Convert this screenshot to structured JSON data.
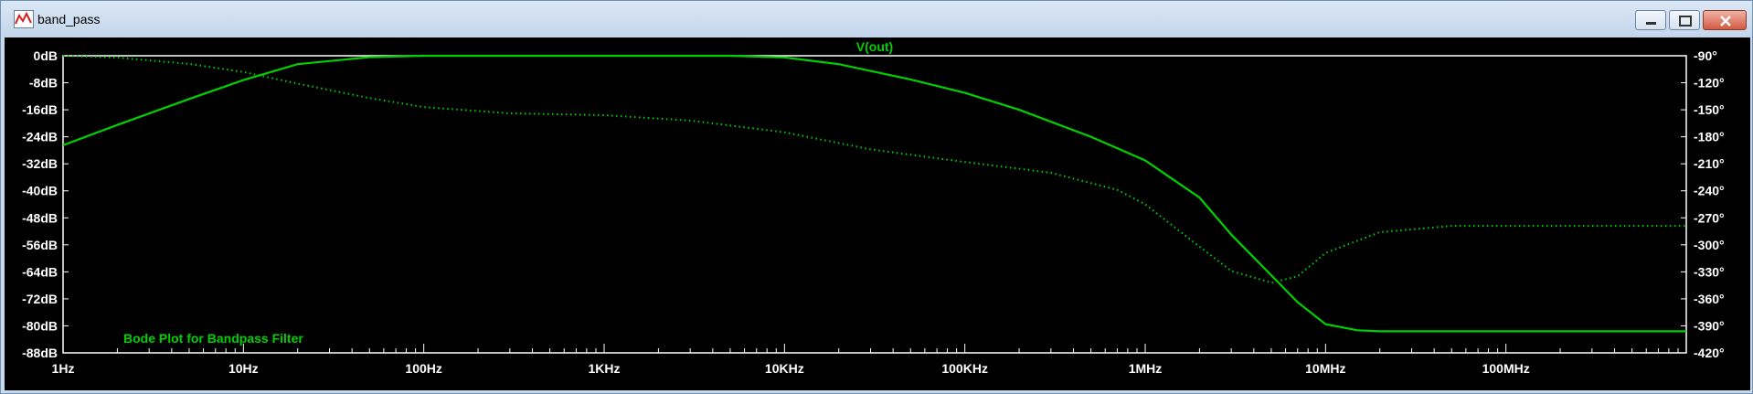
{
  "window": {
    "title": "band_pass"
  },
  "icons": {
    "app": "waveform-icon",
    "minimize": "minimize-icon",
    "maximize": "maximize-icon",
    "close": "close-icon"
  },
  "colors": {
    "trace": "#00d000",
    "axis_text": "#ffffff",
    "background": "#000000",
    "frame": "#ffffff"
  },
  "chart_data": {
    "type": "line",
    "title": "V(out)",
    "annotation": "Bode Plot for Bandpass Filter",
    "x_scale": "log",
    "xlim": [
      1,
      1000000000
    ],
    "x_ticks": [
      {
        "value": 1,
        "label": "1Hz"
      },
      {
        "value": 10,
        "label": "10Hz"
      },
      {
        "value": 100,
        "label": "100Hz"
      },
      {
        "value": 1000,
        "label": "1KHz"
      },
      {
        "value": 10000,
        "label": "10KHz"
      },
      {
        "value": 100000,
        "label": "100KHz"
      },
      {
        "value": 1000000,
        "label": "1MHz"
      },
      {
        "value": 10000000,
        "label": "10MHz"
      },
      {
        "value": 100000000,
        "label": "100MHz"
      }
    ],
    "y_left": {
      "unit": "dB",
      "lim": [
        -88,
        0
      ],
      "ticks": [
        {
          "value": 0,
          "label": "0dB"
        },
        {
          "value": -8,
          "label": "-8dB"
        },
        {
          "value": -16,
          "label": "-16dB"
        },
        {
          "value": -24,
          "label": "-24dB"
        },
        {
          "value": -32,
          "label": "-32dB"
        },
        {
          "value": -40,
          "label": "-40dB"
        },
        {
          "value": -48,
          "label": "-48dB"
        },
        {
          "value": -56,
          "label": "-56dB"
        },
        {
          "value": -64,
          "label": "-64dB"
        },
        {
          "value": -72,
          "label": "-72dB"
        },
        {
          "value": -80,
          "label": "-80dB"
        },
        {
          "value": -88,
          "label": "-88dB"
        }
      ]
    },
    "y_right": {
      "unit": "°",
      "lim": [
        -420,
        -90
      ],
      "ticks": [
        {
          "value": -90,
          "label": "-90°"
        },
        {
          "value": -120,
          "label": "-120°"
        },
        {
          "value": -150,
          "label": "-150°"
        },
        {
          "value": -180,
          "label": "-180°"
        },
        {
          "value": -210,
          "label": "-210°"
        },
        {
          "value": -240,
          "label": "-240°"
        },
        {
          "value": -270,
          "label": "-270°"
        },
        {
          "value": -300,
          "label": "-300°"
        },
        {
          "value": -330,
          "label": "-330°"
        },
        {
          "value": -360,
          "label": "-360°"
        },
        {
          "value": -390,
          "label": "-390°"
        },
        {
          "value": -420,
          "label": "-420°"
        }
      ]
    },
    "grid": false,
    "series": [
      {
        "axis": "left",
        "style": "solid",
        "x": [
          1,
          2,
          5,
          10,
          20,
          50,
          100,
          300,
          1000,
          5000,
          10000,
          20000,
          50000,
          100000,
          200000,
          500000,
          1000000,
          2000000,
          3000000,
          5000000,
          7000000,
          10000000,
          15000000,
          20000000,
          100000000,
          1000000000
        ],
        "y": [
          -26.5,
          -20.5,
          -12.8,
          -7.2,
          -2.5,
          -0.4,
          0,
          0,
          0,
          0,
          -0.5,
          -2.5,
          -7.0,
          -11.0,
          -16.0,
          -24.0,
          -31.0,
          -42.0,
          -53.0,
          -65.0,
          -73.0,
          -79.5,
          -81.3,
          -81.6,
          -81.6,
          -81.6
        ]
      },
      {
        "axis": "right",
        "style": "dotted",
        "x": [
          1,
          2,
          5,
          10,
          20,
          50,
          100,
          300,
          1000,
          3000,
          10000,
          30000,
          100000,
          300000,
          700000,
          1000000,
          2000000,
          3000000,
          5000000,
          7000000,
          10000000,
          20000000,
          50000000,
          100000000,
          1000000000
        ],
        "y": [
          -90,
          -92,
          -99,
          -108,
          -121,
          -137,
          -147,
          -154,
          -156,
          -162,
          -175,
          -194,
          -208,
          -220,
          -239,
          -255,
          -302,
          -329,
          -342,
          -335,
          -309,
          -286,
          -279,
          -279,
          -279
        ]
      }
    ]
  }
}
